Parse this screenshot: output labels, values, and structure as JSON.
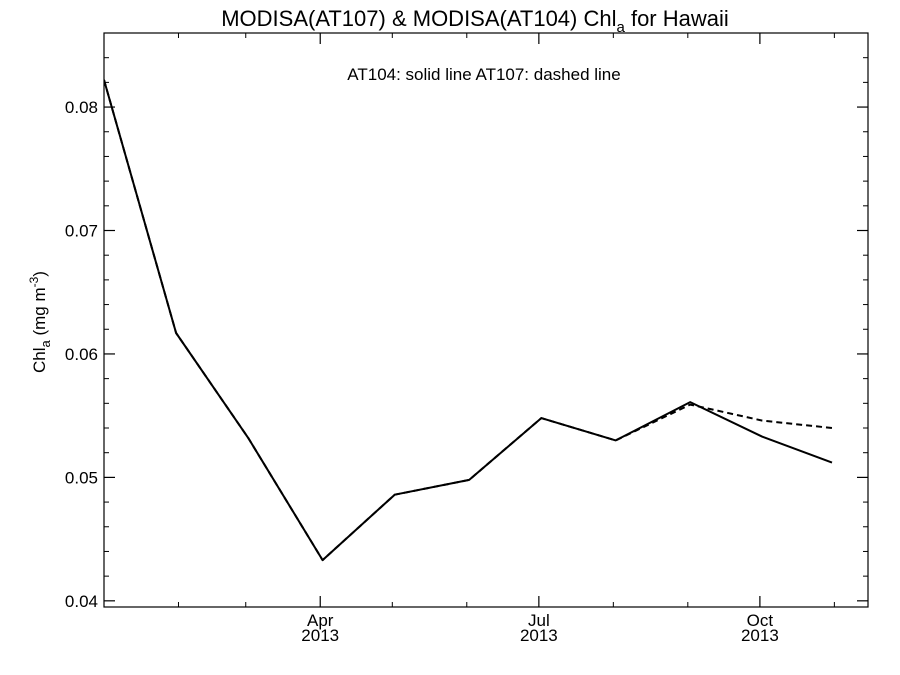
{
  "chart_data": {
    "type": "line",
    "title": {
      "prefix": "MODISA(AT107) & MODISA(AT104)  Chl",
      "subscript": "a",
      "suffix": " for Hawaii"
    },
    "annotation": "AT104: solid line   AT107: dashed line",
    "ylabel": {
      "prefix": "Chl",
      "subscript": "a",
      "middle": " (mg m",
      "superscript": "-3",
      "suffix": ")"
    },
    "xlim": [
      "2013-01-01",
      "2013-11-15"
    ],
    "ylim": [
      0.0395,
      0.086
    ],
    "y_ticks": [
      {
        "value": 0.04,
        "label": "0.04"
      },
      {
        "value": 0.05,
        "label": "0.05"
      },
      {
        "value": 0.06,
        "label": "0.06"
      },
      {
        "value": 0.07,
        "label": "0.07"
      },
      {
        "value": 0.08,
        "label": "0.08"
      }
    ],
    "y_minor_step": 0.002,
    "x_ticks": [
      {
        "date": "2013-04-01",
        "label": "Apr",
        "year": "2013"
      },
      {
        "date": "2013-07-01",
        "label": "Jul",
        "year": "2013"
      },
      {
        "date": "2013-10-01",
        "label": "Oct",
        "year": "2013"
      }
    ],
    "x_minor_ticks": [
      "2013-02-01",
      "2013-03-01",
      "2013-05-01",
      "2013-06-01",
      "2013-08-01",
      "2013-09-01",
      "2013-11-01"
    ],
    "grid": false,
    "series": [
      {
        "name": "AT104",
        "style": "solid",
        "x": [
          "2013-01-01",
          "2013-01-31",
          "2013-03-02",
          "2013-04-02",
          "2013-05-02",
          "2013-06-02",
          "2013-07-02",
          "2013-08-02",
          "2013-09-02",
          "2013-10-02",
          "2013-10-31"
        ],
        "y": [
          0.0822,
          0.0617,
          0.0532,
          0.0433,
          0.0486,
          0.0498,
          0.0548,
          0.053,
          0.0561,
          0.0533,
          0.0512
        ]
      },
      {
        "name": "AT107",
        "style": "dashed",
        "x": [
          "2013-01-01",
          "2013-01-31",
          "2013-03-02",
          "2013-04-02",
          "2013-05-02",
          "2013-06-02",
          "2013-07-02",
          "2013-08-02",
          "2013-09-02",
          "2013-10-02",
          "2013-10-31"
        ],
        "y": [
          0.0822,
          0.0617,
          0.0532,
          0.0433,
          0.0486,
          0.0498,
          0.0548,
          0.053,
          0.0559,
          0.0546,
          0.054
        ]
      }
    ]
  }
}
